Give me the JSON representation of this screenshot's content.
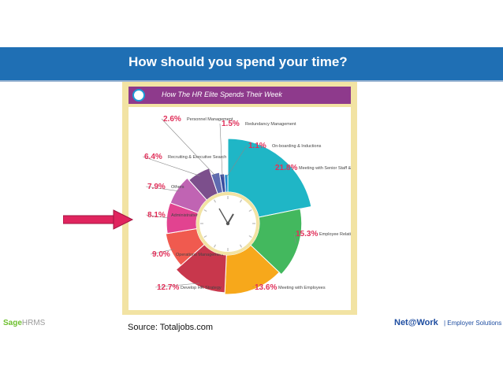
{
  "slide": {
    "title": "How should you spend your time?",
    "source": "Source: Totaljobs.com",
    "logo_left_brand": "Sage",
    "logo_left_product": "HRMS",
    "logo_right_brand": "Net@Work",
    "logo_right_tagline": "| Employer Solutions",
    "colors": {
      "title_bar": "#1f6fb4",
      "arrow": "#e0245e",
      "panel": "#f2e3a3"
    }
  },
  "infographic": {
    "heading": "How The HR Elite Spends Their Week"
  },
  "chart_data": {
    "type": "pie",
    "title": "How The HR Elite Spends Their Week",
    "unit": "%",
    "slices": [
      {
        "label": "Meeting with Senior Staff & Business Partners",
        "value": 21.8,
        "value_label": "21.8%",
        "color": "#1fb6c6"
      },
      {
        "label": "Employee Relations & Engagement",
        "value": 15.3,
        "value_label": "15.3%",
        "color": "#43b85e"
      },
      {
        "label": "Meeting with Employees",
        "value": 13.6,
        "value_label": "13.6%",
        "color": "#f7a81b"
      },
      {
        "label": "Develop HR Strategy",
        "value": 12.7,
        "value_label": "12.7%",
        "color": "#c8374c"
      },
      {
        "label": "Operations Management",
        "value": 9.0,
        "value_label": "9.0%",
        "color": "#f05a4f"
      },
      {
        "label": "Administrative Work",
        "value": 8.1,
        "value_label": "8.1%",
        "color": "#e24390"
      },
      {
        "label": "Others",
        "value": 7.9,
        "value_label": "7.9%",
        "color": "#c064b3"
      },
      {
        "label": "Recruiting & Executive Search",
        "value": 6.4,
        "value_label": "6.4%",
        "color": "#7c4f8c"
      },
      {
        "label": "Personnel Management",
        "value": 2.6,
        "value_label": "2.6%",
        "color": "#5e6ab0"
      },
      {
        "label": "Redundancy Management",
        "value": 1.5,
        "value_label": "1.5%",
        "color": "#3a4fa0"
      },
      {
        "label": "On-boarding & Inductions",
        "value": 1.1,
        "value_label": "1.1%",
        "color": "#1e86cf"
      }
    ]
  }
}
